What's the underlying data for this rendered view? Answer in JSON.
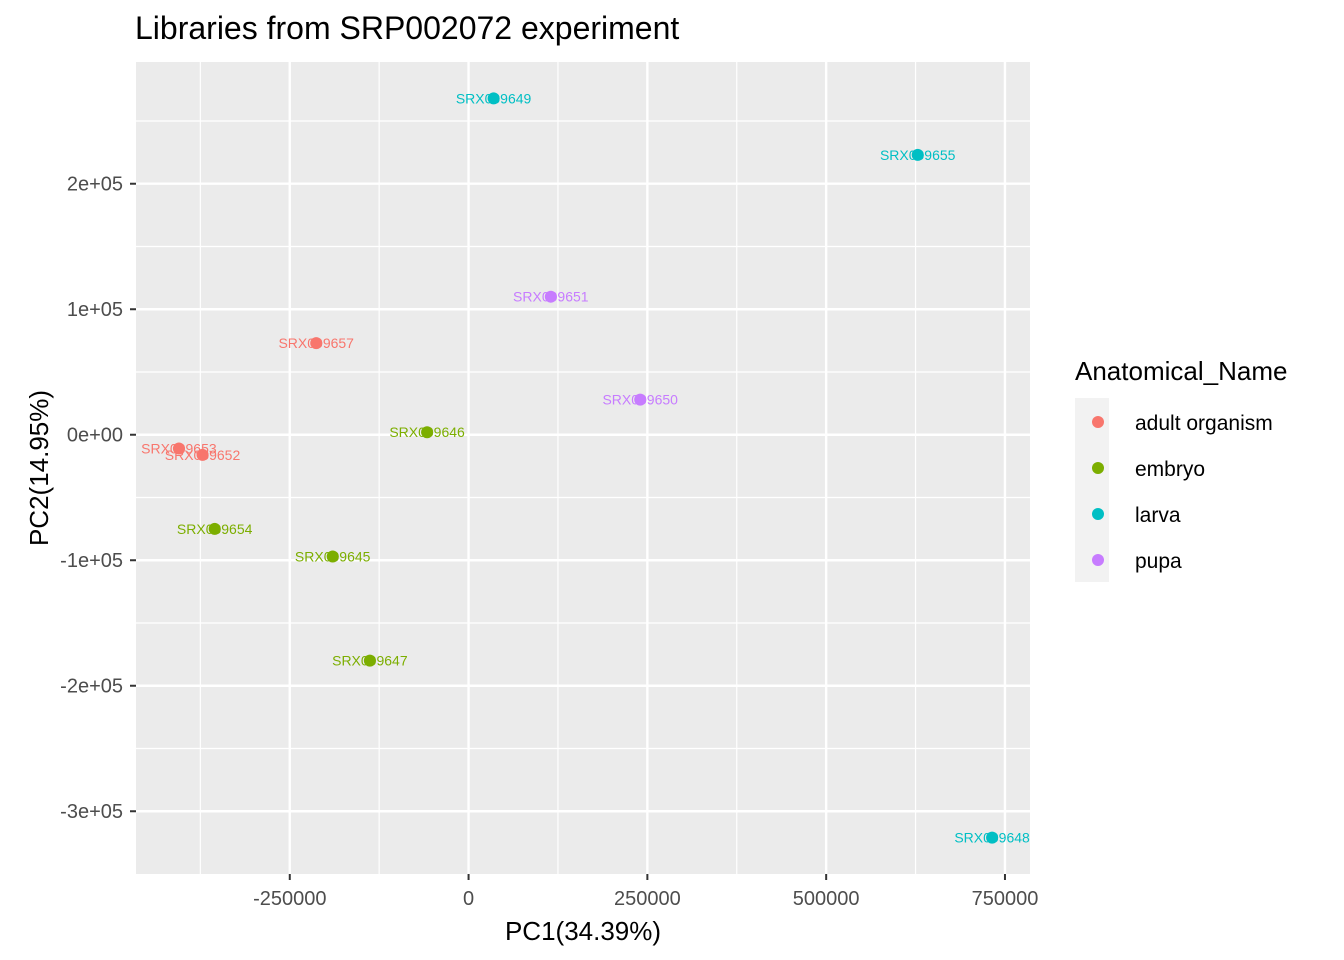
{
  "chart_data": {
    "type": "scatter",
    "title": "Libraries from SRP002072 experiment",
    "xlabel": "PC1(34.39%)",
    "ylabel": "PC2(14.95%)",
    "xlim": [
      -465000,
      785000
    ],
    "ylim": [
      -350000,
      297000
    ],
    "x_ticks": [
      -250000,
      0,
      250000,
      500000,
      750000
    ],
    "x_tick_labels": [
      "-250000",
      "0",
      "250000",
      "500000",
      "750000"
    ],
    "y_ticks": [
      -300000,
      -200000,
      -100000,
      0,
      100000,
      200000
    ],
    "y_tick_labels": [
      "-3e+05",
      "-2e+05",
      "-1e+05",
      "0e+00",
      "1e+05",
      "2e+05"
    ],
    "grid": true,
    "legend": {
      "title": "Anatomical_Name",
      "placement": "right",
      "entries": [
        {
          "name": "adult organism",
          "color": "#F8766D"
        },
        {
          "name": "embryo",
          "color": "#7CAE00"
        },
        {
          "name": "larva",
          "color": "#00BFC4"
        },
        {
          "name": "pupa",
          "color": "#C77CFF"
        }
      ]
    },
    "points": [
      {
        "label": "SRX009649",
        "group": "larva",
        "x": 35000,
        "y": 268000
      },
      {
        "label": "SRX009655",
        "group": "larva",
        "x": 628000,
        "y": 223000
      },
      {
        "label": "SRX009648",
        "group": "larva",
        "x": 732000,
        "y": -321000
      },
      {
        "label": "SRX009651",
        "group": "pupa",
        "x": 115000,
        "y": 110000
      },
      {
        "label": "SRX009650",
        "group": "pupa",
        "x": 240000,
        "y": 28000
      },
      {
        "label": "SRX009657",
        "group": "adult organism",
        "x": -213000,
        "y": 73000
      },
      {
        "label": "SRX009653",
        "group": "adult organism",
        "x": -405000,
        "y": -11000
      },
      {
        "label": "SRX009652",
        "group": "adult organism",
        "x": -372000,
        "y": -16000
      },
      {
        "label": "SRX009646",
        "group": "embryo",
        "x": -58000,
        "y": 2000
      },
      {
        "label": "SRX009654",
        "group": "embryo",
        "x": -355000,
        "y": -75000
      },
      {
        "label": "SRX009645",
        "group": "embryo",
        "x": -190000,
        "y": -97000
      },
      {
        "label": "SRX009647",
        "group": "embryo",
        "x": -138000,
        "y": -180000
      }
    ]
  }
}
